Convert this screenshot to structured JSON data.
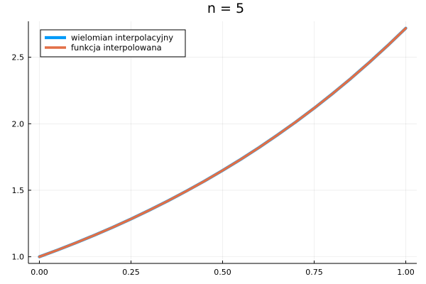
{
  "chart_data": {
    "type": "line",
    "title": "n = 5",
    "xlabel": "",
    "ylabel": "",
    "xlim": [
      -0.03,
      1.03
    ],
    "ylim": [
      0.95,
      2.77
    ],
    "xticks": [
      0.0,
      0.25,
      0.5,
      0.75,
      1.0
    ],
    "xtick_labels": [
      "0.00",
      "0.25",
      "0.50",
      "0.75",
      "1.00"
    ],
    "yticks": [
      1.0,
      1.5,
      2.0,
      2.5
    ],
    "ytick_labels": [
      "1.0",
      "1.5",
      "2.0",
      "2.5"
    ],
    "grid": true,
    "legend_position": "top-left",
    "series": [
      {
        "name": "wielomian interpolacyjny",
        "color": "#009af9",
        "x": [
          0.0,
          0.05,
          0.1,
          0.15,
          0.2,
          0.25,
          0.3,
          0.35,
          0.4,
          0.45,
          0.5,
          0.55,
          0.6,
          0.65,
          0.7,
          0.75,
          0.8,
          0.85,
          0.9,
          0.95,
          1.0
        ],
        "y": [
          1.0,
          1.051,
          1.105,
          1.162,
          1.221,
          1.284,
          1.35,
          1.419,
          1.492,
          1.568,
          1.649,
          1.733,
          1.822,
          1.916,
          2.014,
          2.117,
          2.226,
          2.34,
          2.46,
          2.586,
          2.718
        ]
      },
      {
        "name": "funkcja interpolowana",
        "color": "#e26f46",
        "x": [
          0.0,
          0.05,
          0.1,
          0.15,
          0.2,
          0.25,
          0.3,
          0.35,
          0.4,
          0.45,
          0.5,
          0.55,
          0.6,
          0.65,
          0.7,
          0.75,
          0.8,
          0.85,
          0.9,
          0.95,
          1.0
        ],
        "y": [
          1.0,
          1.051,
          1.105,
          1.162,
          1.221,
          1.284,
          1.35,
          1.419,
          1.492,
          1.568,
          1.649,
          1.733,
          1.822,
          1.916,
          2.014,
          2.117,
          2.226,
          2.34,
          2.46,
          2.586,
          2.718
        ]
      }
    ]
  }
}
